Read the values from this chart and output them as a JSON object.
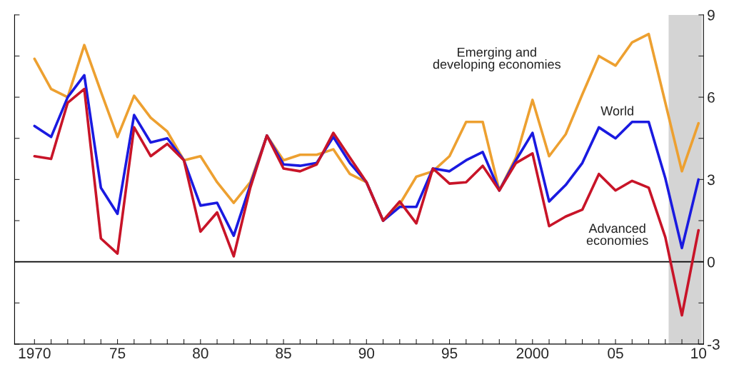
{
  "chart_data": {
    "type": "line",
    "x": [
      1970,
      1971,
      1972,
      1973,
      1974,
      1975,
      1976,
      1977,
      1978,
      1979,
      1980,
      1981,
      1982,
      1983,
      1984,
      1985,
      1986,
      1987,
      1988,
      1989,
      1990,
      1991,
      1992,
      1993,
      1994,
      1995,
      1996,
      1997,
      1998,
      1999,
      2000,
      2001,
      2002,
      2003,
      2004,
      2005,
      2006,
      2007,
      2008,
      2009,
      2010
    ],
    "series": [
      {
        "name": "Emerging and\ndeveloping economies",
        "color": "#eda030",
        "values": [
          7.4,
          6.3,
          6.0,
          7.9,
          6.2,
          4.55,
          6.05,
          5.25,
          4.75,
          3.7,
          3.85,
          2.9,
          2.15,
          2.9,
          4.6,
          3.7,
          3.9,
          3.9,
          4.1,
          3.2,
          2.9,
          1.5,
          2.1,
          3.1,
          3.3,
          3.85,
          5.1,
          5.1,
          2.6,
          3.8,
          5.9,
          3.85,
          4.65,
          6.1,
          7.5,
          7.15,
          8.0,
          8.3,
          5.8,
          3.3,
          5.05
        ]
      },
      {
        "name": "World",
        "color": "#1a1ae0",
        "values": [
          4.95,
          4.55,
          6.0,
          6.8,
          2.7,
          1.75,
          5.35,
          4.35,
          4.5,
          3.7,
          2.05,
          2.15,
          0.95,
          2.8,
          4.6,
          3.55,
          3.5,
          3.6,
          4.55,
          3.6,
          2.9,
          1.5,
          2.0,
          2.0,
          3.4,
          3.3,
          3.7,
          4.0,
          2.6,
          3.7,
          4.7,
          2.2,
          2.8,
          3.6,
          4.9,
          4.5,
          5.1,
          5.1,
          3.05,
          0.5,
          3.0
        ]
      },
      {
        "name": "Advanced\neconomies",
        "color": "#c81428",
        "values": [
          3.85,
          3.75,
          5.8,
          6.3,
          0.85,
          0.3,
          4.9,
          3.85,
          4.3,
          3.7,
          1.1,
          1.8,
          0.2,
          2.7,
          4.6,
          3.4,
          3.3,
          3.55,
          4.7,
          3.8,
          2.9,
          1.5,
          2.2,
          1.4,
          3.4,
          2.85,
          2.9,
          3.5,
          2.6,
          3.6,
          3.95,
          1.3,
          1.65,
          1.9,
          3.2,
          2.6,
          2.95,
          2.7,
          0.9,
          -1.95,
          1.15
        ]
      }
    ],
    "xlim": [
      1968.8,
      2010.3
    ],
    "xticks": [
      {
        "value": 1970,
        "label": "1970"
      },
      {
        "value": 1971,
        "label": null
      },
      {
        "value": 1972,
        "label": null
      },
      {
        "value": 1973,
        "label": null
      },
      {
        "value": 1974,
        "label": null
      },
      {
        "value": 1975,
        "label": "75"
      },
      {
        "value": 1976,
        "label": null
      },
      {
        "value": 1977,
        "label": null
      },
      {
        "value": 1978,
        "label": null
      },
      {
        "value": 1979,
        "label": null
      },
      {
        "value": 1980,
        "label": "80"
      },
      {
        "value": 1981,
        "label": null
      },
      {
        "value": 1982,
        "label": null
      },
      {
        "value": 1983,
        "label": null
      },
      {
        "value": 1984,
        "label": null
      },
      {
        "value": 1985,
        "label": "85"
      },
      {
        "value": 1986,
        "label": null
      },
      {
        "value": 1987,
        "label": null
      },
      {
        "value": 1988,
        "label": null
      },
      {
        "value": 1989,
        "label": null
      },
      {
        "value": 1990,
        "label": "90"
      },
      {
        "value": 1991,
        "label": null
      },
      {
        "value": 1992,
        "label": null
      },
      {
        "value": 1993,
        "label": null
      },
      {
        "value": 1994,
        "label": null
      },
      {
        "value": 1995,
        "label": "95"
      },
      {
        "value": 1996,
        "label": null
      },
      {
        "value": 1997,
        "label": null
      },
      {
        "value": 1998,
        "label": null
      },
      {
        "value": 1999,
        "label": null
      },
      {
        "value": 2000,
        "label": "2000"
      },
      {
        "value": 2001,
        "label": null
      },
      {
        "value": 2002,
        "label": null
      },
      {
        "value": 2003,
        "label": null
      },
      {
        "value": 2004,
        "label": null
      },
      {
        "value": 2005,
        "label": "05"
      },
      {
        "value": 2006,
        "label": null
      },
      {
        "value": 2007,
        "label": null
      },
      {
        "value": 2008,
        "label": null
      },
      {
        "value": 2009,
        "label": null
      },
      {
        "value": 2010,
        "label": "10"
      }
    ],
    "ylim": [
      -3,
      9
    ],
    "yticks": [
      -3,
      {
        "value": -1.5,
        "label": null
      },
      0,
      {
        "value": 1.5,
        "label": null
      },
      3,
      {
        "value": 4.5,
        "label": null
      },
      6,
      {
        "value": 7.5,
        "label": null
      },
      9
    ],
    "ref_lines": [
      {
        "axis": "y",
        "value": 0,
        "color": "#000000"
      }
    ],
    "bands": [
      {
        "axis": "x",
        "from": 2008.2,
        "to": 2010.2,
        "color": "#d4d4d4"
      }
    ],
    "grid": false,
    "legend": false,
    "line_style": "solid",
    "marker": "none"
  }
}
